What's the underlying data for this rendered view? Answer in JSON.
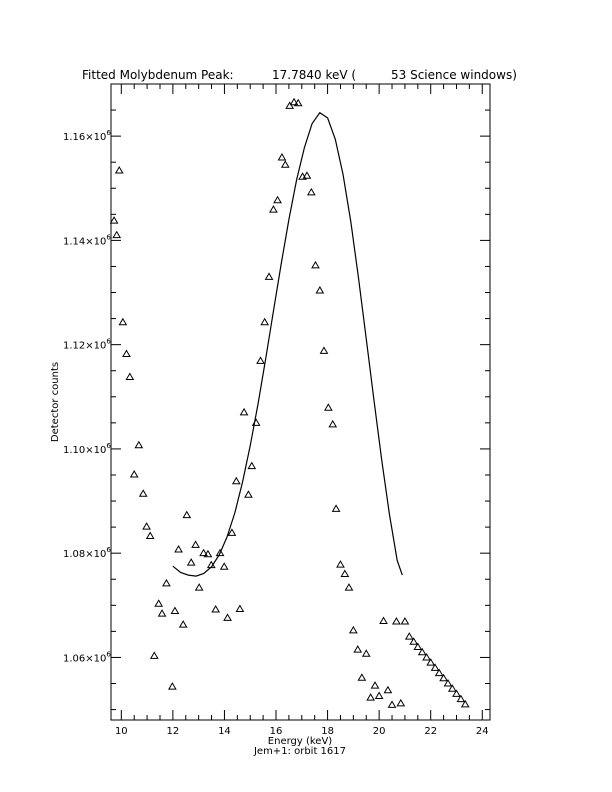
{
  "chart_data": {
    "type": "scatter",
    "title_parts": [
      "Fitted Molybdenum Peak:",
      "17.7840 keV (",
      "53 Science windows)"
    ],
    "xlabel": "Energy (keV)",
    "ylabel": "Detector counts",
    "subtitle": "Jem+1: orbit 1617",
    "xlim": [
      9.6,
      24.3
    ],
    "ylim": [
      1048000,
      1170000
    ],
    "x_ticks": [
      {
        "value": 10,
        "label": "10"
      },
      {
        "value": 12,
        "label": "12"
      },
      {
        "value": 14,
        "label": "14"
      },
      {
        "value": 16,
        "label": "16"
      },
      {
        "value": 18,
        "label": "18"
      },
      {
        "value": 20,
        "label": "20"
      },
      {
        "value": 22,
        "label": "22"
      },
      {
        "value": 24,
        "label": "24"
      }
    ],
    "y_ticks": [
      {
        "value": 1060000,
        "mant": "1.06×10",
        "exp": "6"
      },
      {
        "value": 1080000,
        "mant": "1.08×10",
        "exp": "6"
      },
      {
        "value": 1100000,
        "mant": "1.10×10",
        "exp": "6"
      },
      {
        "value": 1120000,
        "mant": "1.12×10",
        "exp": "6"
      },
      {
        "value": 1140000,
        "mant": "1.14×10",
        "exp": "6"
      },
      {
        "value": 1160000,
        "mant": "1.16×10",
        "exp": "6"
      }
    ],
    "grid": false,
    "legend": "none",
    "series": [
      {
        "marker": "triangle",
        "x": [
          9.72,
          9.82,
          9.92,
          10.06,
          10.2,
          10.33,
          10.5,
          10.68,
          10.85,
          10.98,
          11.12,
          11.28,
          11.45,
          11.58,
          11.75,
          11.98,
          12.08,
          12.22,
          12.4,
          12.54,
          12.71,
          12.88,
          13.02,
          13.19,
          13.36,
          13.49,
          13.66,
          13.83,
          13.99,
          14.12,
          14.29,
          14.46,
          14.6,
          14.76,
          14.93,
          15.06,
          15.23,
          15.4,
          15.56,
          15.73,
          15.9,
          16.06,
          16.23,
          16.36,
          16.53,
          16.7,
          16.86,
          17.03,
          17.2,
          17.37,
          17.53,
          17.7,
          17.86,
          18.03,
          18.2,
          18.33,
          18.5,
          18.67,
          18.83,
          19.0,
          19.17,
          19.33,
          19.5,
          19.67,
          19.84,
          20.0,
          20.17,
          20.34,
          20.5,
          20.67,
          20.84,
          21.0,
          21.17,
          21.34,
          21.5,
          21.67,
          21.84,
          22.0,
          22.17,
          22.33,
          22.5,
          22.67,
          22.84,
          23.0,
          23.17,
          23.34
        ],
        "y": [
          1143800,
          1141000,
          1153400,
          1124300,
          1118200,
          1113800,
          1095100,
          1100700,
          1091400,
          1085100,
          1083300,
          1060300,
          1070300,
          1068400,
          1074200,
          1054400,
          1068900,
          1080700,
          1066300,
          1087300,
          1078200,
          1081600,
          1073400,
          1080000,
          1079800,
          1077700,
          1069200,
          1080000,
          1077400,
          1067600,
          1083900,
          1093800,
          1069300,
          1107000,
          1091200,
          1096700,
          1105000,
          1116900,
          1124300,
          1133000,
          1145900,
          1147700,
          1155900,
          1154500,
          1165800,
          1166500,
          1166300,
          1152200,
          1152400,
          1149200,
          1135200,
          1130400,
          1118800,
          1107900,
          1104700,
          1088500,
          1077800,
          1076000,
          1073400,
          1065200,
          1061500,
          1056100,
          1060700,
          1052300,
          1054600,
          1052600,
          1067000,
          1053700,
          1050900,
          1066900,
          1051200,
          1066900,
          1064000,
          1063000,
          1062000,
          1061000,
          1060000,
          1059000,
          1058000,
          1057000,
          1056000,
          1055000,
          1054000,
          1053000,
          1052000,
          1051000
        ]
      },
      {
        "marker": "line",
        "x": [
          12.0,
          12.3,
          12.6,
          12.9,
          13.2,
          13.5,
          13.8,
          14.1,
          14.4,
          14.7,
          15.0,
          15.3,
          15.6,
          15.9,
          16.2,
          16.5,
          16.8,
          17.1,
          17.4,
          17.7,
          18.0,
          18.3,
          18.6,
          18.9,
          19.2,
          19.5,
          19.8,
          20.1,
          20.4,
          20.7,
          20.9
        ],
        "y": [
          1077500,
          1076300,
          1075800,
          1075600,
          1076100,
          1077400,
          1079700,
          1083100,
          1087700,
          1093600,
          1100600,
          1108600,
          1117300,
          1126400,
          1135500,
          1144000,
          1151600,
          1157800,
          1162400,
          1164500,
          1163500,
          1159400,
          1152700,
          1143600,
          1132800,
          1121200,
          1109300,
          1097900,
          1087500,
          1078600,
          1075800
        ]
      }
    ]
  }
}
